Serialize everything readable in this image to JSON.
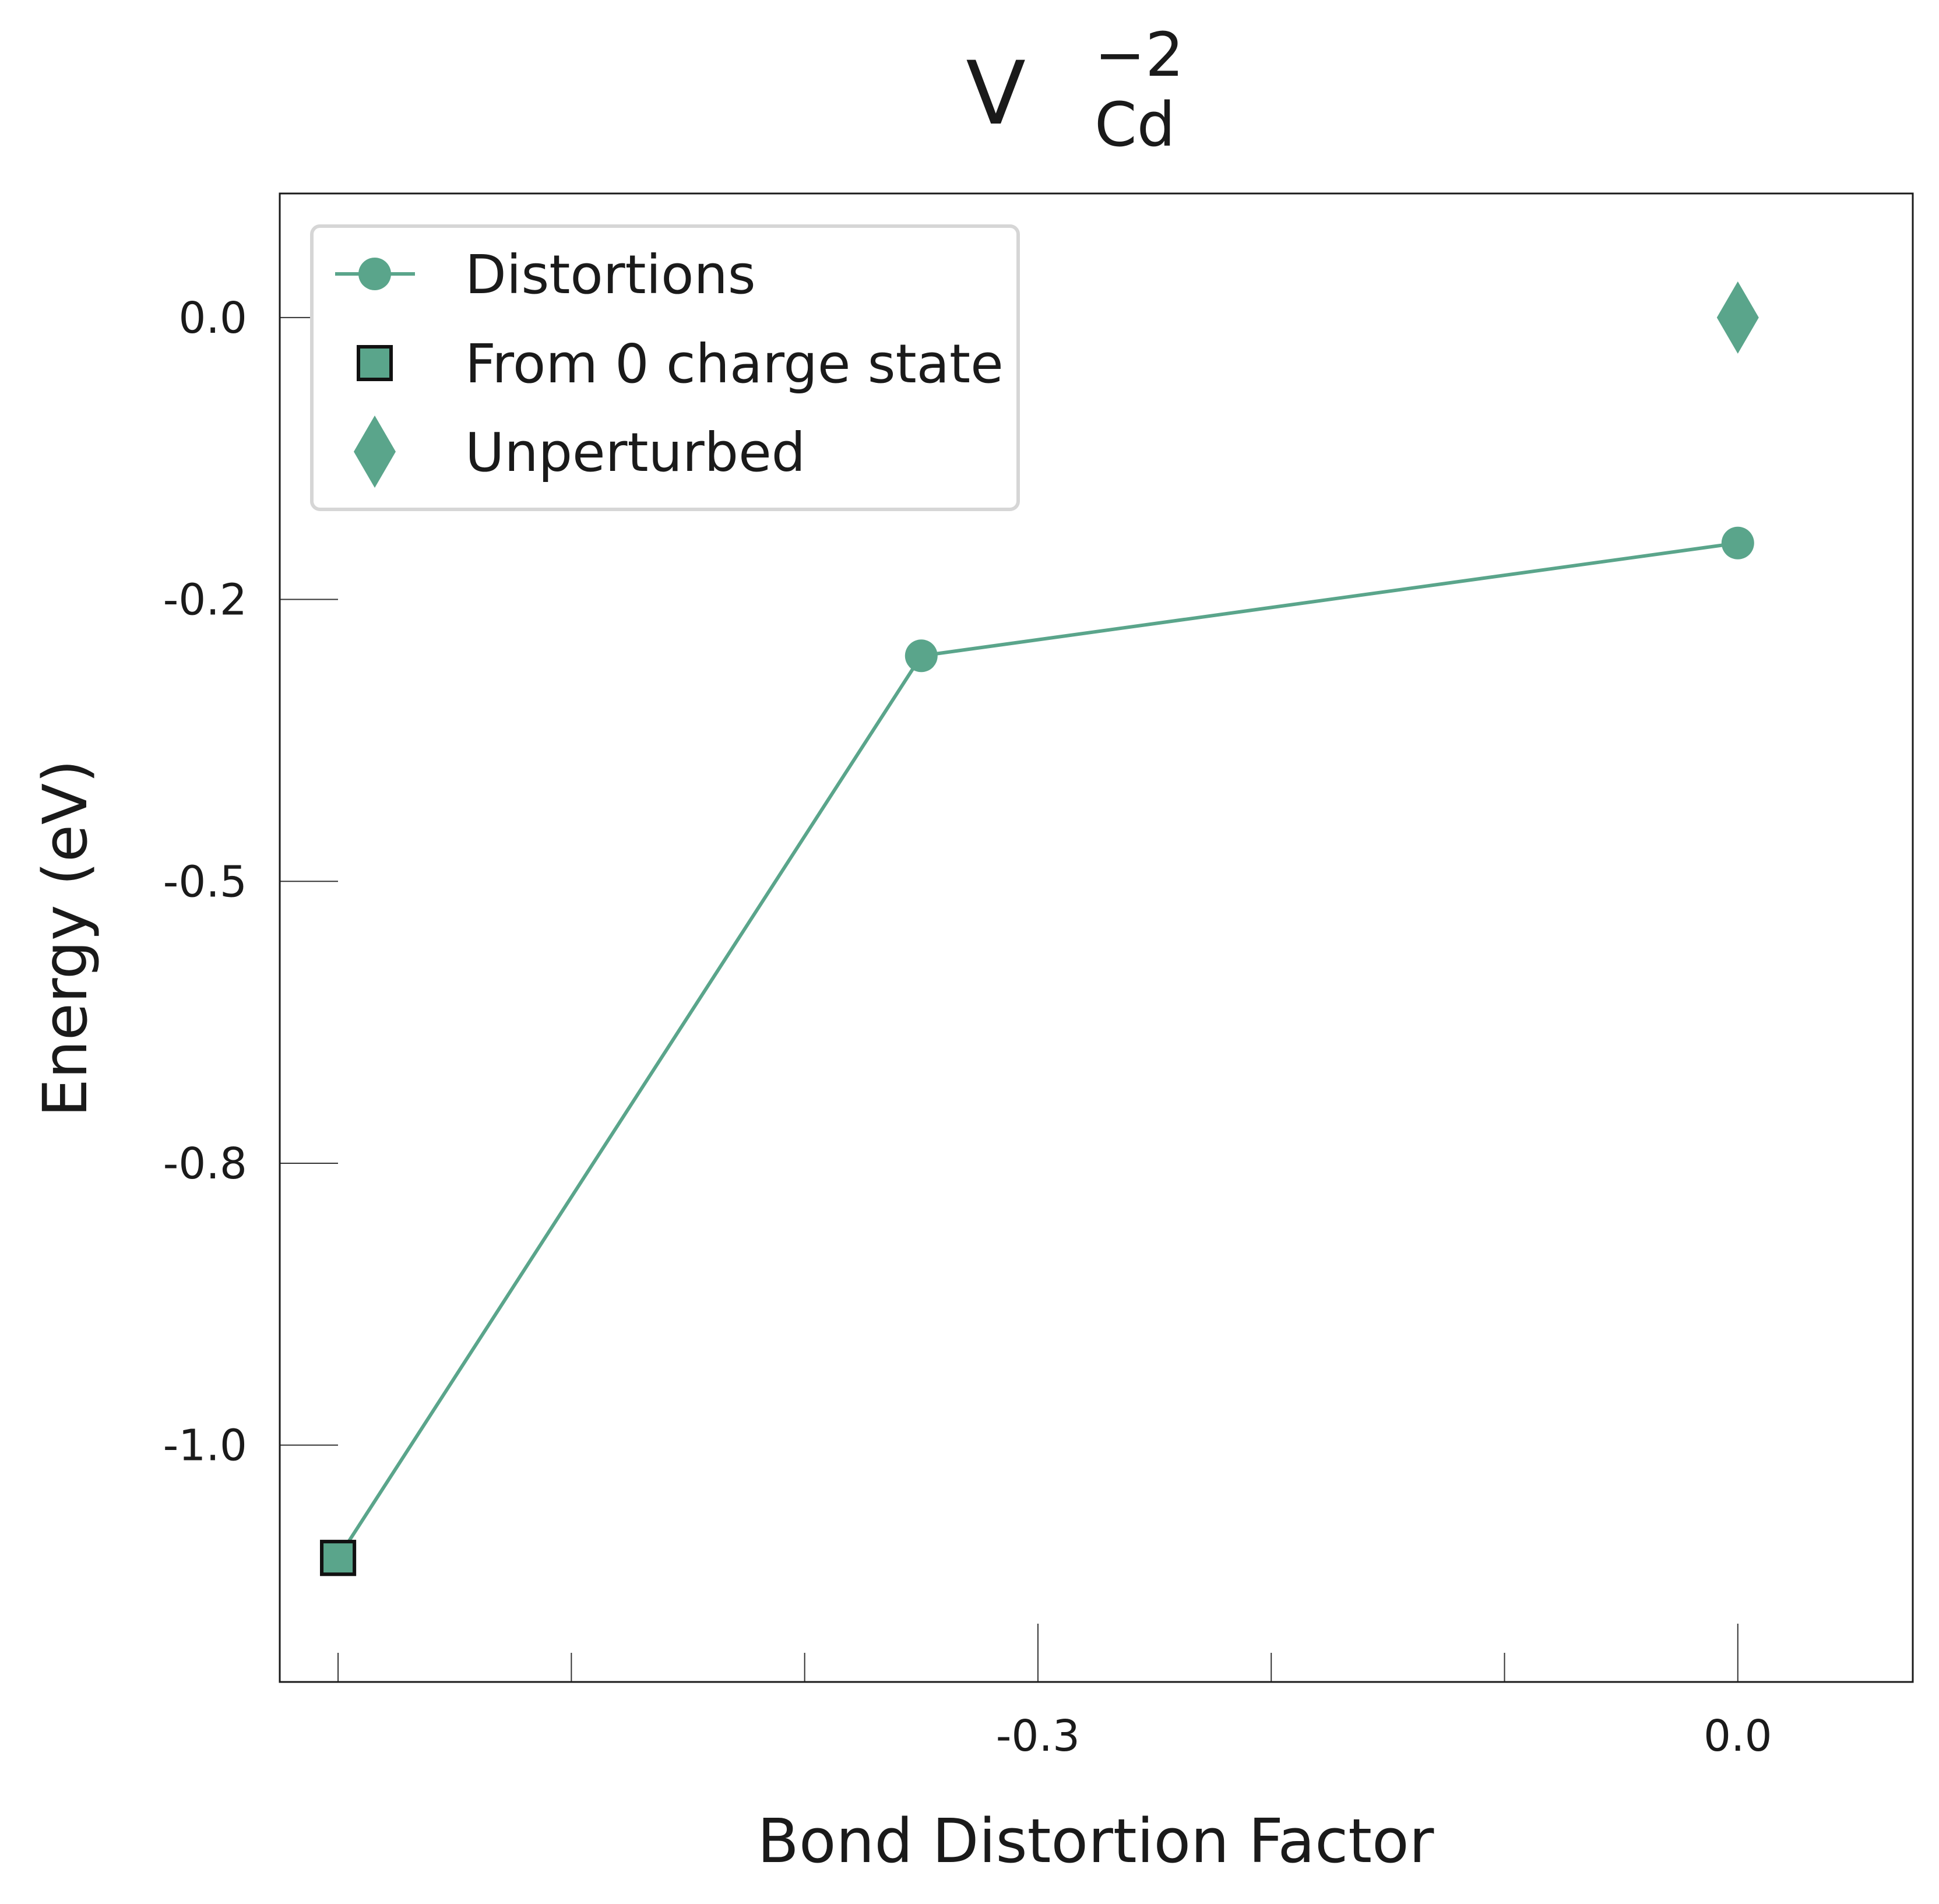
{
  "chart_data": {
    "type": "line",
    "title": {
      "base": "V",
      "subscript": "Cd",
      "superscript": "−2"
    },
    "xlabel": "Bond Distortion Factor",
    "ylabel": "Energy (eV)",
    "xlim": [
      -0.625,
      0.075
    ],
    "ylim": [
      -1.21,
      0.11
    ],
    "x_ticks": [
      -0.6,
      -0.5,
      -0.4,
      -0.3,
      -0.2,
      -0.1,
      0.0
    ],
    "x_tick_labels": [
      {
        "value": -0.3,
        "label": "-0.3"
      },
      {
        "value": 0.0,
        "label": "0.0"
      }
    ],
    "y_ticks": [
      {
        "value": 0.0,
        "label": "0.0"
      },
      {
        "value": -0.25,
        "label": "-0.2"
      },
      {
        "value": -0.5,
        "label": "-0.5"
      },
      {
        "value": -0.75,
        "label": "-0.8"
      },
      {
        "value": -1.0,
        "label": "-1.0"
      }
    ],
    "grid": false,
    "legend_position": "top-left",
    "colors": {
      "series": "#5aa58b",
      "marker_edge": "#111111",
      "frame": "#1a1a1a"
    },
    "series": [
      {
        "name": "Distortions",
        "marker": "circle",
        "line": true,
        "points": [
          {
            "x": -0.6,
            "y": -1.1,
            "marker": "square"
          },
          {
            "x": -0.35,
            "y": -0.3
          },
          {
            "x": 0.0,
            "y": -0.2
          }
        ]
      },
      {
        "name": "From 0 charge state",
        "marker": "square",
        "line": false,
        "points": [
          {
            "x": -0.6,
            "y": -1.1
          }
        ]
      },
      {
        "name": "Unperturbed",
        "marker": "diamond",
        "line": false,
        "points": [
          {
            "x": 0.0,
            "y": 0.0
          }
        ]
      }
    ],
    "legend": [
      {
        "label": "Distortions",
        "marker": "circle-line"
      },
      {
        "label": "From 0 charge state",
        "marker": "square"
      },
      {
        "label": "Unperturbed",
        "marker": "diamond"
      }
    ]
  }
}
